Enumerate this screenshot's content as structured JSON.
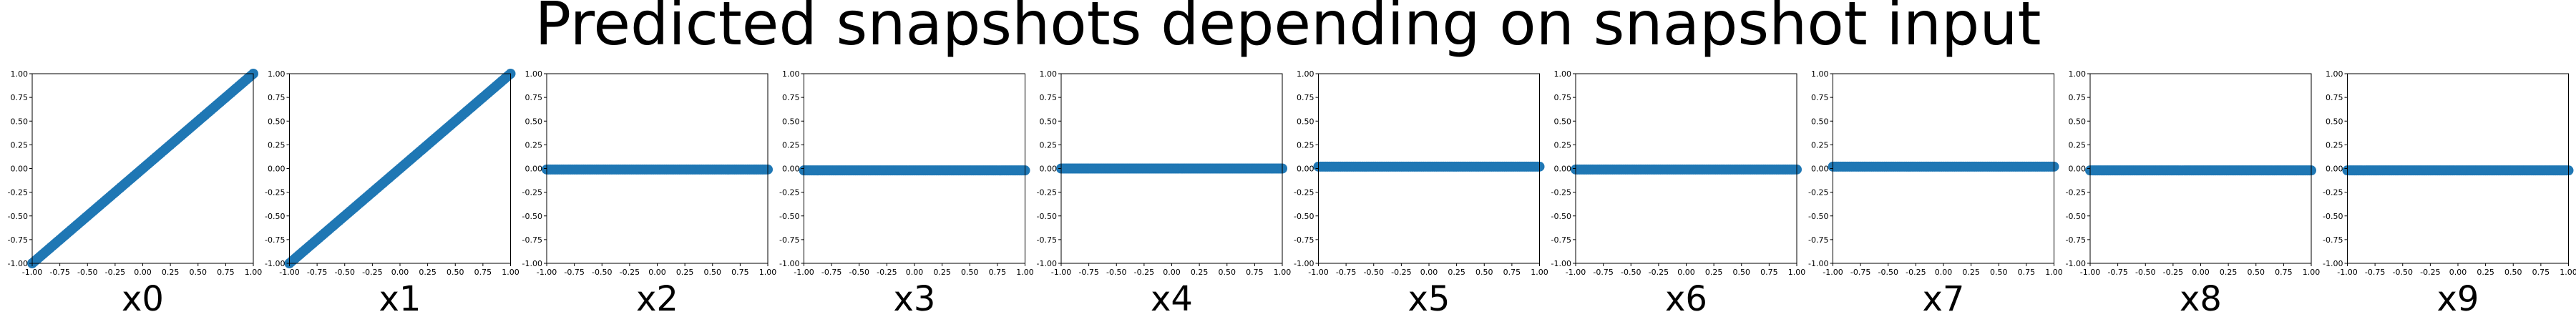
{
  "figure": {
    "title": "Predicted snapshots depending on snapshot input"
  },
  "chart_data": [
    {
      "type": "scatter",
      "xlabel": "x0",
      "slope": 1.0,
      "intercept": 0.0,
      "xlim": [
        -1.0,
        1.0
      ],
      "ylim": [
        -1.0,
        1.0
      ],
      "xticks": [
        "-1.00",
        "-0.75",
        "-0.50",
        "-0.25",
        "0.00",
        "0.25",
        "0.50",
        "0.75",
        "1.00"
      ],
      "yticks": [
        "-1.00",
        "-0.75",
        "-0.50",
        "-0.25",
        "0.00",
        "0.25",
        "0.50",
        "0.75",
        "1.00"
      ],
      "color": "#1f77b4"
    },
    {
      "type": "scatter",
      "xlabel": "x1",
      "slope": 1.0,
      "intercept": 0.0,
      "xlim": [
        -1.0,
        1.0
      ],
      "ylim": [
        -1.0,
        1.0
      ],
      "xticks": [
        "-1.00",
        "-0.75",
        "-0.50",
        "-0.25",
        "0.00",
        "0.25",
        "0.50",
        "0.75",
        "1.00"
      ],
      "yticks": [
        "-1.00",
        "-0.75",
        "-0.50",
        "-0.25",
        "0.00",
        "0.25",
        "0.50",
        "0.75",
        "1.00"
      ],
      "color": "#1f77b4"
    },
    {
      "type": "scatter",
      "xlabel": "x2",
      "slope": 0.0,
      "intercept": -0.01,
      "xlim": [
        -1.0,
        1.0
      ],
      "ylim": [
        -1.0,
        1.0
      ],
      "xticks": [
        "-1.00",
        "-0.75",
        "-0.50",
        "-0.25",
        "0.00",
        "0.25",
        "0.50",
        "0.75",
        "1.00"
      ],
      "yticks": [
        "-1.00",
        "-0.75",
        "-0.50",
        "-0.25",
        "0.00",
        "0.25",
        "0.50",
        "0.75",
        "1.00"
      ],
      "color": "#1f77b4"
    },
    {
      "type": "scatter",
      "xlabel": "x3",
      "slope": 0.0,
      "intercept": -0.02,
      "xlim": [
        -1.0,
        1.0
      ],
      "ylim": [
        -1.0,
        1.0
      ],
      "xticks": [
        "-1.00",
        "-0.75",
        "-0.50",
        "-0.25",
        "0.00",
        "0.25",
        "0.50",
        "0.75",
        "1.00"
      ],
      "yticks": [
        "-1.00",
        "-0.75",
        "-0.50",
        "-0.25",
        "0.00",
        "0.25",
        "0.50",
        "0.75",
        "1.00"
      ],
      "color": "#1f77b4"
    },
    {
      "type": "scatter",
      "xlabel": "x4",
      "slope": 0.0,
      "intercept": 0.0,
      "xlim": [
        -1.0,
        1.0
      ],
      "ylim": [
        -1.0,
        1.0
      ],
      "xticks": [
        "-1.00",
        "-0.75",
        "-0.50",
        "-0.25",
        "0.00",
        "0.25",
        "0.50",
        "0.75",
        "1.00"
      ],
      "yticks": [
        "-1.00",
        "-0.75",
        "-0.50",
        "-0.25",
        "0.00",
        "0.25",
        "0.50",
        "0.75",
        "1.00"
      ],
      "color": "#1f77b4"
    },
    {
      "type": "scatter",
      "xlabel": "x5",
      "slope": 0.0,
      "intercept": 0.02,
      "xlim": [
        -1.0,
        1.0
      ],
      "ylim": [
        -1.0,
        1.0
      ],
      "xticks": [
        "-1.00",
        "-0.75",
        "-0.50",
        "-0.25",
        "0.00",
        "0.25",
        "0.50",
        "0.75",
        "1.00"
      ],
      "yticks": [
        "-1.00",
        "-0.75",
        "-0.50",
        "-0.25",
        "0.00",
        "0.25",
        "0.50",
        "0.75",
        "1.00"
      ],
      "color": "#1f77b4"
    },
    {
      "type": "scatter",
      "xlabel": "x6",
      "slope": 0.0,
      "intercept": -0.01,
      "xlim": [
        -1.0,
        1.0
      ],
      "ylim": [
        -1.0,
        1.0
      ],
      "xticks": [
        "-1.00",
        "-0.75",
        "-0.50",
        "-0.25",
        "0.00",
        "0.25",
        "0.50",
        "0.75",
        "1.00"
      ],
      "yticks": [
        "-1.00",
        "-0.75",
        "-0.50",
        "-0.25",
        "0.00",
        "0.25",
        "0.50",
        "0.75",
        "1.00"
      ],
      "color": "#1f77b4"
    },
    {
      "type": "scatter",
      "xlabel": "x7",
      "slope": 0.0,
      "intercept": 0.02,
      "xlim": [
        -1.0,
        1.0
      ],
      "ylim": [
        -1.0,
        1.0
      ],
      "xticks": [
        "-1.00",
        "-0.75",
        "-0.50",
        "-0.25",
        "0.00",
        "0.25",
        "0.50",
        "0.75",
        "1.00"
      ],
      "yticks": [
        "-1.00",
        "-0.75",
        "-0.50",
        "-0.25",
        "0.00",
        "0.25",
        "0.50",
        "0.75",
        "1.00"
      ],
      "color": "#1f77b4"
    },
    {
      "type": "scatter",
      "xlabel": "x8",
      "slope": 0.0,
      "intercept": -0.02,
      "xlim": [
        -1.0,
        1.0
      ],
      "ylim": [
        -1.0,
        1.0
      ],
      "xticks": [
        "-1.00",
        "-0.75",
        "-0.50",
        "-0.25",
        "0.00",
        "0.25",
        "0.50",
        "0.75",
        "1.00"
      ],
      "yticks": [
        "-1.00",
        "-0.75",
        "-0.50",
        "-0.25",
        "0.00",
        "0.25",
        "0.50",
        "0.75",
        "1.00"
      ],
      "color": "#1f77b4"
    },
    {
      "type": "scatter",
      "xlabel": "x9",
      "slope": 0.0,
      "intercept": -0.02,
      "xlim": [
        -1.0,
        1.0
      ],
      "ylim": [
        -1.0,
        1.0
      ],
      "xticks": [
        "-1.00",
        "-0.75",
        "-0.50",
        "-0.25",
        "0.00",
        "0.25",
        "0.50",
        "0.75",
        "1.00"
      ],
      "yticks": [
        "-1.00",
        "-0.75",
        "-0.50",
        "-0.25",
        "0.00",
        "0.25",
        "0.50",
        "0.75",
        "1.00"
      ],
      "color": "#1f77b4"
    }
  ]
}
